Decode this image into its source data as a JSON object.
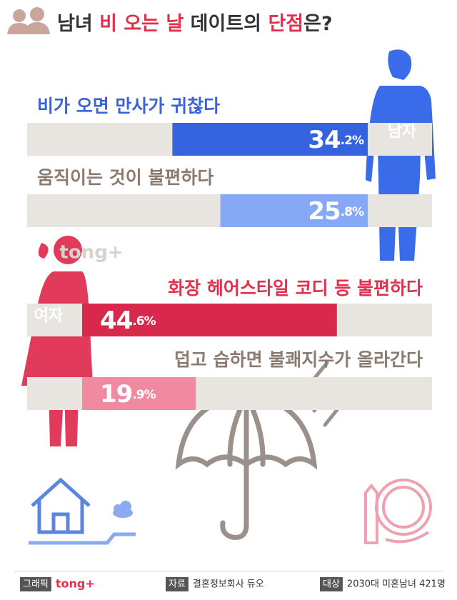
{
  "chart_data": {
    "type": "bar",
    "title_parts": [
      {
        "text": "남녀 ",
        "color": "#333333"
      },
      {
        "text": "비 오는 날",
        "color": "#e0304e"
      },
      {
        "text": " 데이트의 ",
        "color": "#333333"
      },
      {
        "text": "단점",
        "color": "#e0304e"
      },
      {
        "text": "은?",
        "color": "#333333"
      }
    ],
    "xlim": [
      0,
      50
    ],
    "groups": [
      {
        "name": "남자",
        "align": "right",
        "categories": [
          "비가 오면 만사가 귀찮다",
          "움직이는 것이 불편하다"
        ],
        "label_colors": [
          "#3b63d8",
          "#8a7a70"
        ],
        "colors": [
          "#3563e0",
          "#86a8f5"
        ],
        "values": [
          34.2,
          25.8
        ],
        "value_labels": [
          "34.2%",
          "25.8%"
        ]
      },
      {
        "name": "여자",
        "align": "left",
        "categories": [
          "화장 헤어스타일 코디 등 불편하다",
          "덥고 습하면 불쾌지수가 올라간다"
        ],
        "label_colors": [
          "#e0304e",
          "#8a7a70"
        ],
        "colors": [
          "#d8284c",
          "#f08aa0"
        ],
        "values": [
          44.6,
          19.9
        ],
        "value_labels": [
          "44.6%",
          "19.9%"
        ]
      }
    ],
    "watermark": "tong+",
    "footer": [
      {
        "key": "그래픽",
        "text": "tong+"
      },
      {
        "key": "자료",
        "text": "결혼정보회사 듀오"
      },
      {
        "key": "대상",
        "text": "2030대 미혼남녀 421명"
      }
    ]
  }
}
